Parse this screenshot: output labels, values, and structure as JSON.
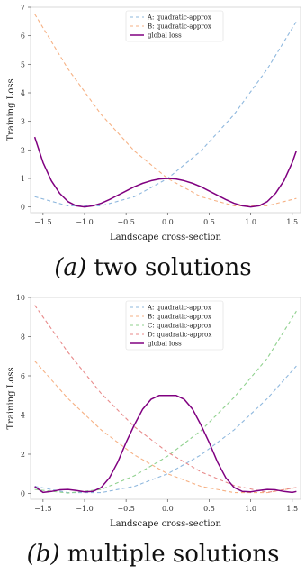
{
  "colors": {
    "A": "#8fb8de",
    "B": "#f6b184",
    "C": "#8fd18e",
    "D": "#e88a8a",
    "global": "#800080"
  },
  "captions": [
    {
      "label": "(a)",
      "text": " two solutions"
    },
    {
      "label": "(b)",
      "text": " multiple solutions"
    }
  ],
  "chart_data": [
    {
      "type": "line",
      "xlabel": "Landscape cross-section",
      "ylabel": "Training Loss",
      "xlim": [
        -1.65,
        1.6
      ],
      "ylim": [
        -0.2,
        7
      ],
      "xticks": [
        -1.5,
        -1.0,
        -0.5,
        0.0,
        0.5,
        1.0,
        1.5
      ],
      "xtick_labels": [
        "−1.5",
        "−1.0",
        "−0.5",
        "0.0",
        "0.5",
        "1.0",
        "1.5"
      ],
      "yticks": [
        0,
        1,
        2,
        3,
        4,
        5,
        6,
        7
      ],
      "ytick_labels": [
        "0",
        "1",
        "2",
        "3",
        "4",
        "5",
        "6",
        "7"
      ],
      "grid": false,
      "legend_position": "top-center",
      "series": [
        {
          "name": "A: quadratic-approx",
          "key": "A",
          "dashed": true,
          "x": [
            -1.6,
            -1.2,
            -0.8,
            -0.4,
            0.0,
            0.4,
            0.8,
            1.2,
            1.55
          ],
          "y": [
            0.36,
            0.04,
            0.04,
            0.36,
            1.0,
            1.96,
            3.24,
            4.84,
            6.5
          ]
        },
        {
          "name": "B: quadratic-approx",
          "key": "B",
          "dashed": true,
          "x": [
            -1.6,
            -1.2,
            -0.8,
            -0.4,
            0.0,
            0.4,
            0.8,
            1.2,
            1.55
          ],
          "y": [
            6.76,
            4.84,
            3.24,
            1.96,
            1.0,
            0.36,
            0.04,
            0.04,
            0.3
          ]
        },
        {
          "name": "global loss",
          "key": "global",
          "dashed": false,
          "x": [
            -1.6,
            -1.5,
            -1.4,
            -1.3,
            -1.2,
            -1.1,
            -1.0,
            -0.9,
            -0.8,
            -0.7,
            -0.6,
            -0.5,
            -0.4,
            -0.3,
            -0.2,
            -0.1,
            0.0,
            0.1,
            0.2,
            0.3,
            0.4,
            0.5,
            0.6,
            0.7,
            0.8,
            0.9,
            1.0,
            1.1,
            1.2,
            1.3,
            1.4,
            1.5,
            1.55
          ],
          "y": [
            2.45,
            1.56,
            0.92,
            0.48,
            0.19,
            0.04,
            0.0,
            0.04,
            0.13,
            0.26,
            0.41,
            0.56,
            0.71,
            0.83,
            0.92,
            0.98,
            1.0,
            0.98,
            0.92,
            0.83,
            0.71,
            0.56,
            0.41,
            0.26,
            0.13,
            0.04,
            0.0,
            0.04,
            0.19,
            0.48,
            0.92,
            1.56,
            1.97
          ]
        }
      ]
    },
    {
      "type": "line",
      "xlabel": "Landscape cross-section",
      "ylabel": "Training Loss",
      "xlim": [
        -1.65,
        1.6
      ],
      "ylim": [
        -0.3,
        10
      ],
      "xticks": [
        -1.5,
        -1.0,
        -0.5,
        0.0,
        0.5,
        1.0,
        1.5
      ],
      "xtick_labels": [
        "−1.5",
        "−1.0",
        "−0.5",
        "0.0",
        "0.5",
        "1.0",
        "1.5"
      ],
      "yticks": [
        0,
        2,
        4,
        6,
        8,
        10
      ],
      "ytick_labels": [
        "0",
        "2",
        "4",
        "6",
        "8",
        "10"
      ],
      "grid": false,
      "legend_position": "top-center",
      "series": [
        {
          "name": "A: quadratic-approx",
          "key": "A",
          "dashed": true,
          "x": [
            -1.6,
            -1.2,
            -0.8,
            -0.4,
            0.0,
            0.4,
            0.8,
            1.2,
            1.55
          ],
          "y": [
            0.36,
            0.04,
            0.04,
            0.36,
            1.0,
            1.96,
            3.24,
            4.84,
            6.5
          ]
        },
        {
          "name": "B: quadratic-approx",
          "key": "B",
          "dashed": true,
          "x": [
            -1.6,
            -1.2,
            -0.8,
            -0.4,
            0.0,
            0.4,
            0.8,
            1.2,
            1.55
          ],
          "y": [
            6.76,
            4.84,
            3.24,
            1.96,
            1.0,
            0.36,
            0.04,
            0.04,
            0.3
          ]
        },
        {
          "name": "C: quadratic-approx",
          "key": "C",
          "dashed": true,
          "x": [
            -1.6,
            -1.2,
            -0.8,
            -0.4,
            0.0,
            0.4,
            0.8,
            1.2,
            1.55
          ],
          "y": [
            0.2,
            0.02,
            0.2,
            0.9,
            1.9,
            3.2,
            4.9,
            6.9,
            9.3
          ]
        },
        {
          "name": "D: quadratic-approx",
          "key": "D",
          "dashed": true,
          "x": [
            -1.6,
            -1.2,
            -0.8,
            -0.4,
            0.0,
            0.4,
            0.8,
            1.2,
            1.55
          ],
          "y": [
            9.6,
            7.2,
            5.1,
            3.4,
            2.1,
            1.1,
            0.4,
            0.05,
            0.3
          ]
        },
        {
          "name": "global loss",
          "key": "global",
          "dashed": false,
          "x": [
            -1.6,
            -1.5,
            -1.4,
            -1.3,
            -1.2,
            -1.1,
            -1.0,
            -0.9,
            -0.8,
            -0.7,
            -0.6,
            -0.5,
            -0.4,
            -0.3,
            -0.2,
            -0.1,
            0.0,
            0.1,
            0.2,
            0.3,
            0.4,
            0.5,
            0.6,
            0.7,
            0.8,
            0.9,
            1.0,
            1.1,
            1.2,
            1.3,
            1.4,
            1.5,
            1.55
          ],
          "y": [
            0.35,
            0.05,
            0.1,
            0.18,
            0.2,
            0.15,
            0.08,
            0.1,
            0.3,
            0.8,
            1.6,
            2.6,
            3.5,
            4.3,
            4.8,
            5.0,
            5.0,
            5.0,
            4.8,
            4.3,
            3.5,
            2.6,
            1.6,
            0.8,
            0.3,
            0.1,
            0.08,
            0.15,
            0.2,
            0.18,
            0.1,
            0.05,
            0.1
          ]
        }
      ]
    }
  ]
}
